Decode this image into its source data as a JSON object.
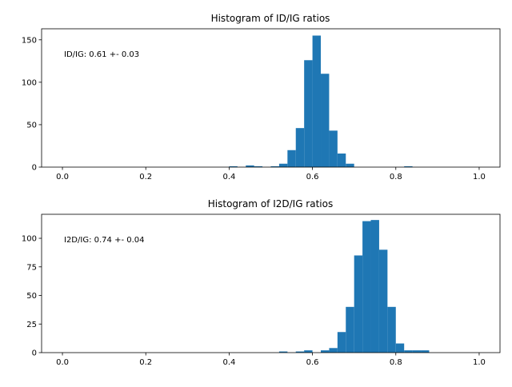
{
  "chart_data": [
    {
      "type": "bar",
      "title": "Histogram of ID/IG ratios",
      "annotation": "ID/IG: 0.61 +- 0.03",
      "xlabel": "",
      "ylabel": "",
      "xlim": [
        -0.05,
        1.05
      ],
      "ylim": [
        0,
        163
      ],
      "xticks": [
        0.0,
        0.2,
        0.4,
        0.6,
        0.8,
        1.0
      ],
      "xtick_labels": [
        "0.0",
        "0.2",
        "0.4",
        "0.6",
        "0.8",
        "1.0"
      ],
      "yticks": [
        0,
        50,
        100,
        150
      ],
      "ytick_labels": [
        "0",
        "50",
        "100",
        "150"
      ],
      "bin_width": 0.02,
      "bins": [
        0.4,
        0.44,
        0.46,
        0.5,
        0.52,
        0.54,
        0.56,
        0.58,
        0.6,
        0.62,
        0.64,
        0.66,
        0.68,
        0.82
      ],
      "values": [
        1,
        2,
        1,
        1,
        4,
        20,
        46,
        126,
        155,
        110,
        43,
        16,
        4,
        1
      ],
      "color": "#1f77b4"
    },
    {
      "type": "bar",
      "title": "Histogram of I2D/IG ratios",
      "annotation": "I2D/IG: 0.74 +- 0.04",
      "xlabel": "",
      "ylabel": "",
      "xlim": [
        -0.05,
        1.05
      ],
      "ylim": [
        0,
        121
      ],
      "xticks": [
        0.0,
        0.2,
        0.4,
        0.6,
        0.8,
        1.0
      ],
      "xtick_labels": [
        "0.0",
        "0.2",
        "0.4",
        "0.6",
        "0.8",
        "1.0"
      ],
      "yticks": [
        0,
        25,
        50,
        75,
        100
      ],
      "ytick_labels": [
        "0",
        "25",
        "50",
        "75",
        "100"
      ],
      "bin_width": 0.02,
      "bins": [
        0.52,
        0.56,
        0.58,
        0.62,
        0.64,
        0.66,
        0.68,
        0.7,
        0.72,
        0.74,
        0.76,
        0.78,
        0.8,
        0.82,
        0.84,
        0.86
      ],
      "values": [
        1,
        1,
        2,
        2,
        4,
        18,
        40,
        85,
        115,
        116,
        90,
        40,
        8,
        2,
        2,
        2
      ],
      "color": "#1f77b4"
    }
  ]
}
